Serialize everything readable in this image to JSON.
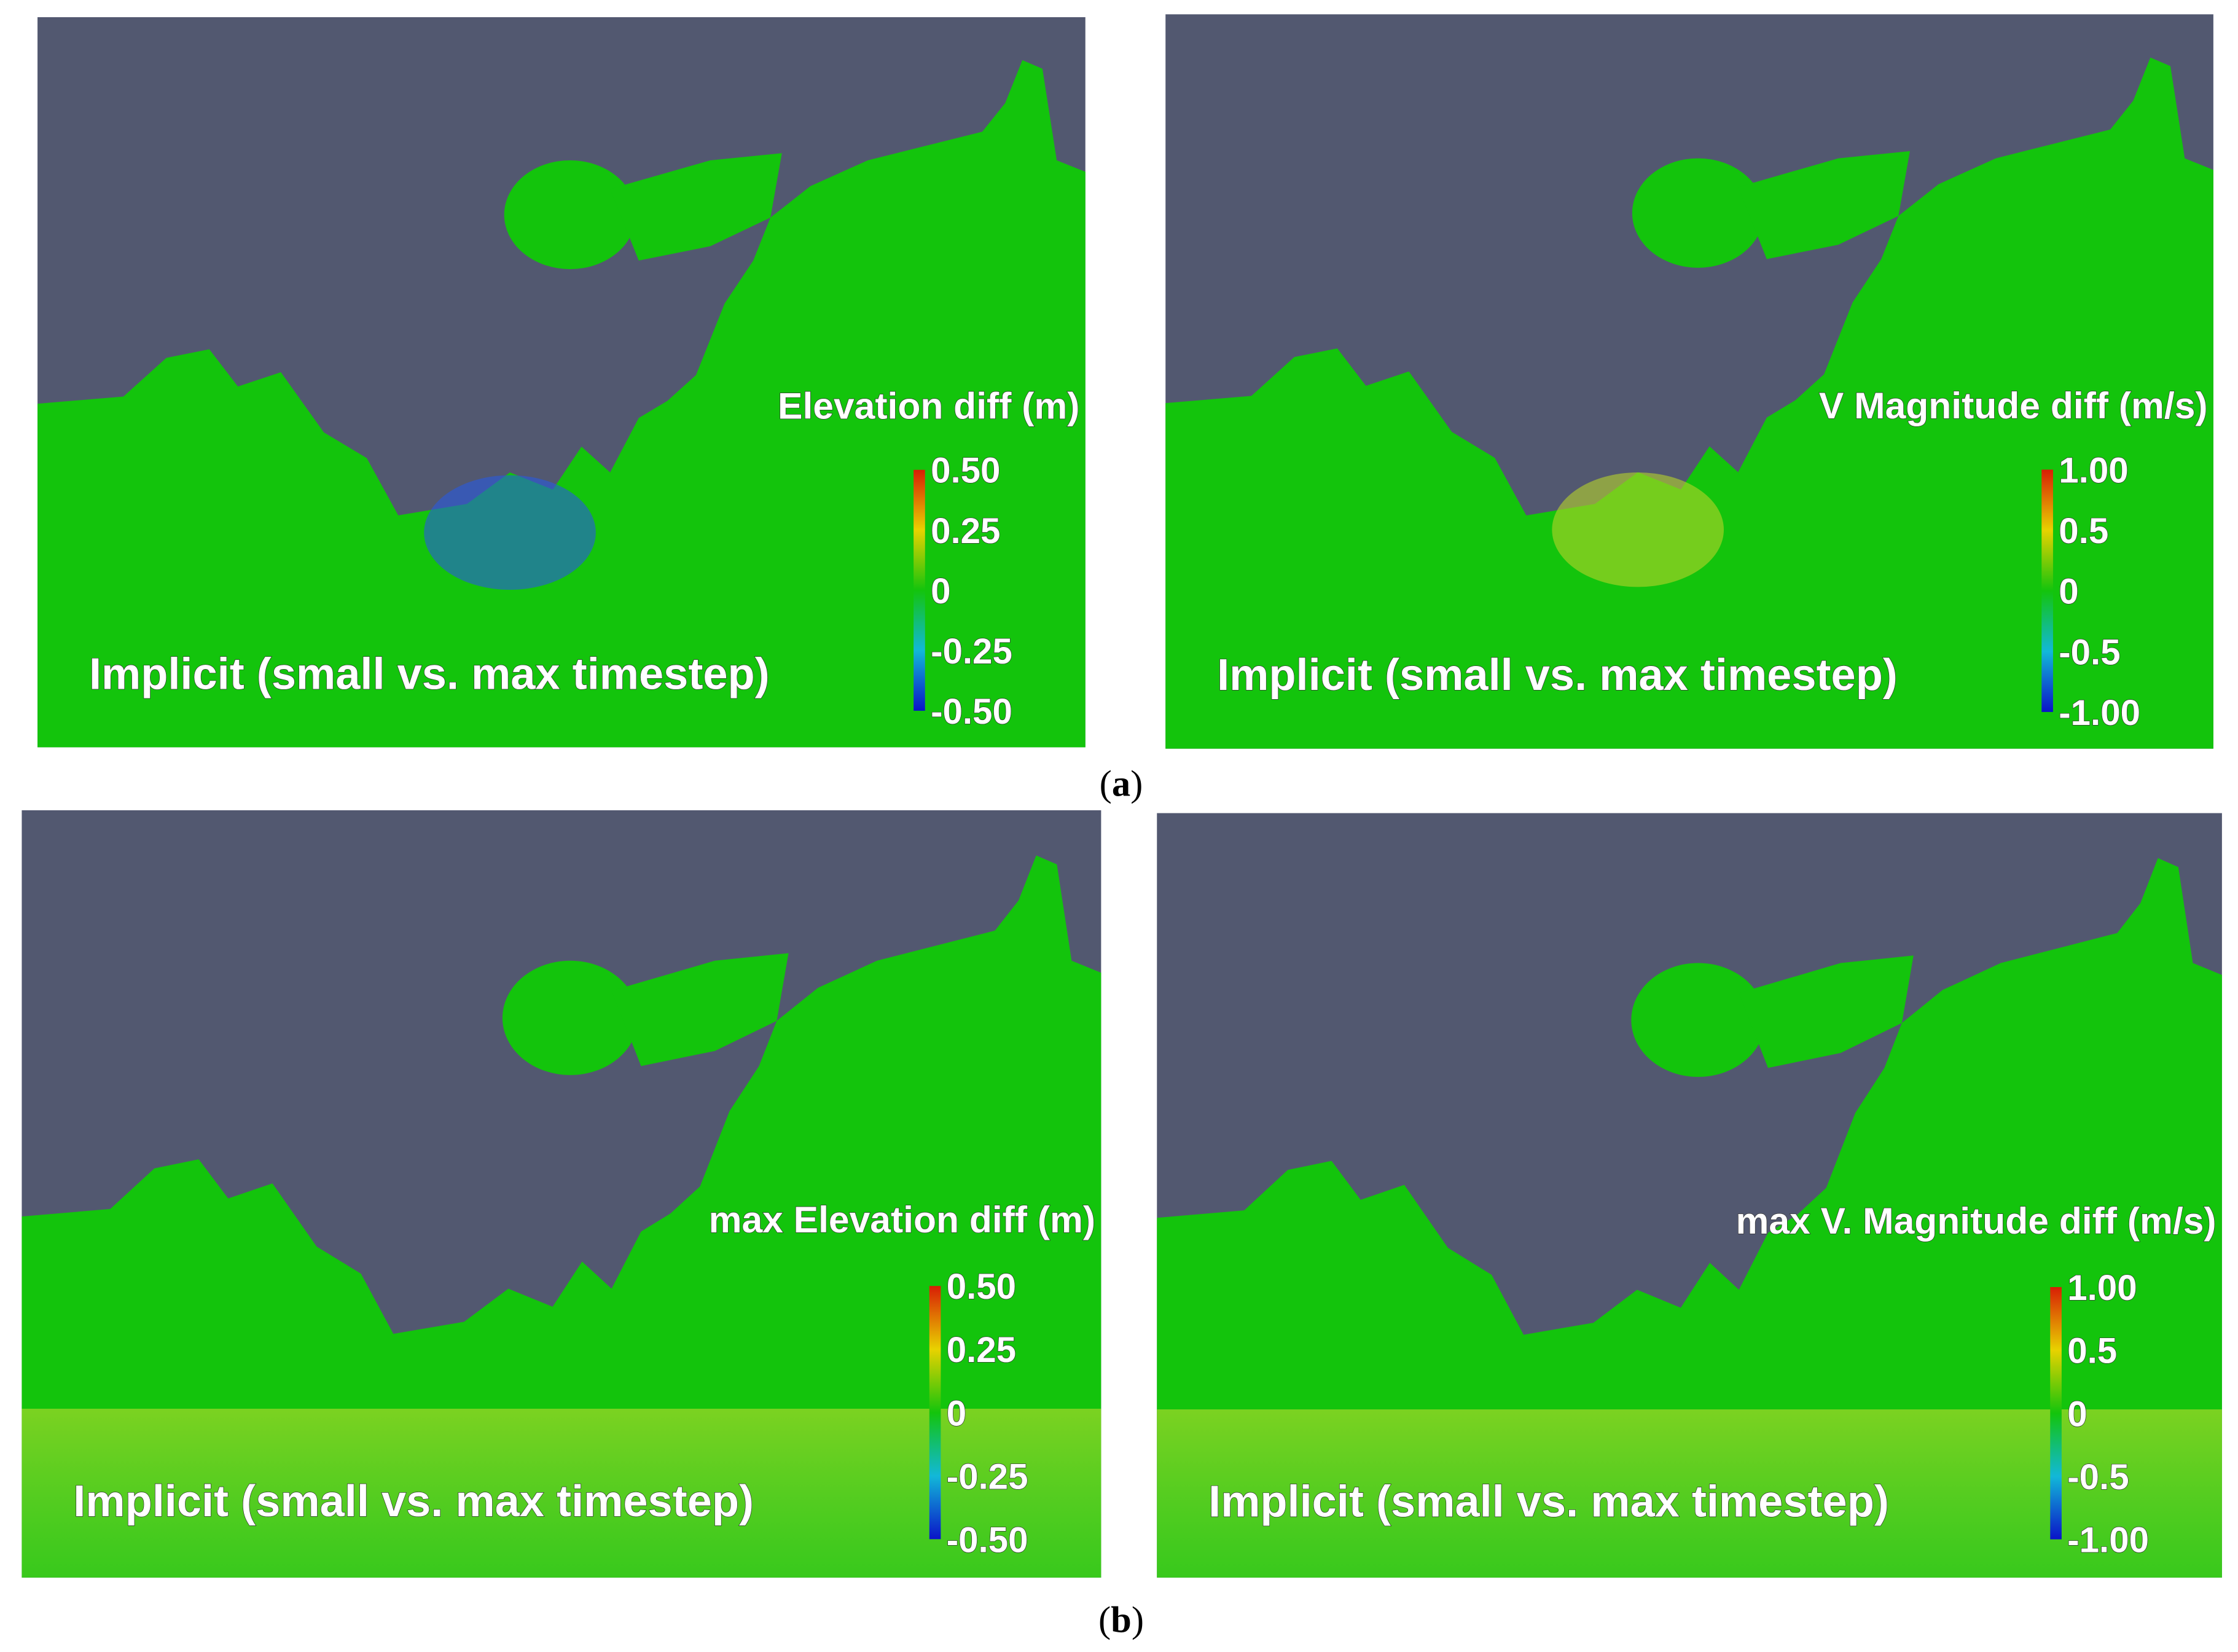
{
  "panels": [
    {
      "colorbar_title": "Elevation diff (m)",
      "annotation": "Implicit (small vs. max timestep)",
      "colorbar_ticks": [
        "0.50",
        "0.25",
        "0",
        "-0.25",
        "-0.50"
      ]
    },
    {
      "colorbar_title": "V Magnitude diff (m/s)",
      "annotation": "Implicit (small vs. max timestep)",
      "colorbar_ticks": [
        "1.00",
        "0.5",
        "0",
        "-0.5",
        "-1.00"
      ]
    },
    {
      "colorbar_title": "max Elevation diff (m)",
      "annotation": "Implicit (small vs. max timestep)",
      "colorbar_ticks": [
        "0.50",
        "0.25",
        "0",
        "-0.25",
        "-0.50"
      ]
    },
    {
      "colorbar_title": "max V. Magnitude diff (m/s)",
      "annotation": "Implicit (small vs. max timestep)",
      "colorbar_ticks": [
        "1.00",
        "0.5",
        "0",
        "-0.5",
        "-1.00"
      ]
    }
  ],
  "subfigure_labels": [
    "a",
    "b"
  ]
}
